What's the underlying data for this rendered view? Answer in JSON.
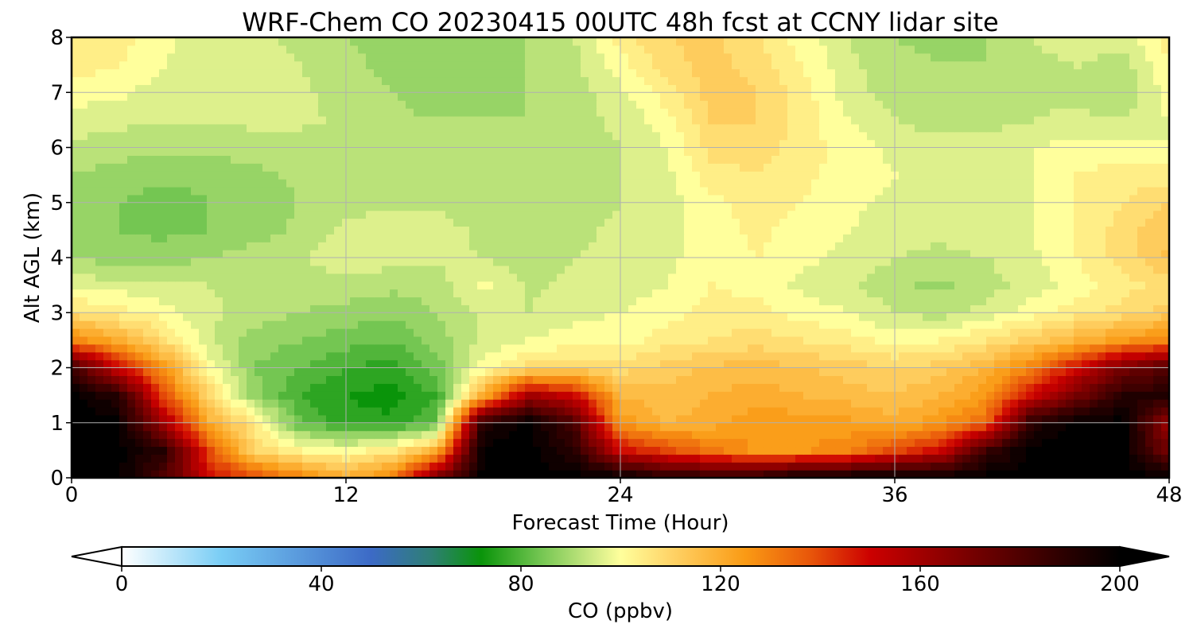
{
  "chart_data": {
    "type": "heatmap",
    "title": "WRF-Chem CO  20230415 00UTC 48h fcst at CCNY lidar site",
    "xlabel": "Forecast Time (Hour)",
    "ylabel": "Alt AGL (km)",
    "xlim": [
      0,
      48
    ],
    "ylim": [
      0,
      8
    ],
    "xticks": [
      0,
      12,
      24,
      36,
      48
    ],
    "yticks": [
      0,
      1,
      2,
      3,
      4,
      5,
      6,
      7,
      8
    ],
    "grid": true,
    "colorbar": {
      "label": "CO  (ppbv)",
      "range": [
        0,
        200
      ],
      "ticks": [
        0,
        40,
        80,
        120,
        160,
        200
      ],
      "extend": "both",
      "orientation": "horizontal",
      "placement": "bottom",
      "colorstops": [
        {
          "value": 0,
          "color": "#ffffff"
        },
        {
          "value": 20,
          "color": "#79cdf5"
        },
        {
          "value": 50,
          "color": "#3c6ac6"
        },
        {
          "value": 62,
          "color": "#2e7f74"
        },
        {
          "value": 72,
          "color": "#0a940a"
        },
        {
          "value": 84,
          "color": "#74c652"
        },
        {
          "value": 95,
          "color": "#d4ec88"
        },
        {
          "value": 100,
          "color": "#ffff9c"
        },
        {
          "value": 110,
          "color": "#ffd468"
        },
        {
          "value": 125,
          "color": "#fa9a14"
        },
        {
          "value": 138,
          "color": "#e8560a"
        },
        {
          "value": 150,
          "color": "#cc0000"
        },
        {
          "value": 165,
          "color": "#8c0000"
        },
        {
          "value": 185,
          "color": "#3a0000"
        },
        {
          "value": 200,
          "color": "#000000"
        }
      ]
    },
    "x": [
      0,
      2,
      4,
      6,
      8,
      10,
      12,
      14,
      16,
      18,
      20,
      22,
      24,
      26,
      28,
      30,
      32,
      34,
      36,
      38,
      40,
      42,
      44,
      46,
      48
    ],
    "y": [
      0,
      0.5,
      1,
      1.5,
      2,
      2.5,
      3,
      3.5,
      4,
      4.5,
      5,
      5.5,
      6,
      6.5,
      7,
      7.5,
      8
    ],
    "z": [
      [
        200,
        200,
        180,
        150,
        140,
        130,
        120,
        130,
        170,
        200,
        200,
        200,
        200,
        190,
        190,
        190,
        200,
        200,
        200,
        200,
        200,
        200,
        200,
        200,
        200
      ],
      [
        200,
        200,
        190,
        140,
        110,
        102,
        100,
        105,
        120,
        200,
        200,
        190,
        150,
        140,
        132,
        125,
        125,
        130,
        140,
        150,
        185,
        200,
        200,
        200,
        170
      ],
      [
        200,
        200,
        160,
        120,
        105,
        82,
        76,
        75,
        82,
        190,
        200,
        180,
        125,
        118,
        120,
        125,
        124,
        123,
        120,
        125,
        135,
        190,
        200,
        200,
        160
      ],
      [
        200,
        190,
        140,
        110,
        88,
        78,
        74,
        72,
        78,
        120,
        160,
        150,
        118,
        115,
        118,
        120,
        118,
        116,
        114,
        118,
        125,
        150,
        170,
        190,
        190
      ],
      [
        185,
        150,
        125,
        100,
        86,
        82,
        78,
        76,
        84,
        100,
        108,
        110,
        108,
        112,
        115,
        116,
        114,
        112,
        110,
        112,
        118,
        130,
        150,
        170,
        180
      ],
      [
        130,
        120,
        108,
        95,
        88,
        86,
        84,
        82,
        88,
        95,
        98,
        100,
        100,
        104,
        106,
        108,
        106,
        104,
        100,
        102,
        106,
        112,
        118,
        125,
        130
      ],
      [
        108,
        104,
        100,
        95,
        92,
        90,
        88,
        87,
        90,
        95,
        94,
        97,
        98,
        100,
        104,
        104,
        100,
        98,
        94,
        92,
        96,
        100,
        104,
        108,
        112
      ],
      [
        96,
        96,
        95,
        94,
        92,
        92,
        93,
        91,
        92,
        99,
        93,
        95,
        96,
        98,
        102,
        100,
        97,
        95,
        91,
        89,
        92,
        96,
        100,
        104,
        108
      ],
      [
        90,
        88,
        88,
        90,
        92,
        94,
        96,
        96,
        95,
        94,
        92,
        94,
        95,
        97,
        100,
        102,
        99,
        97,
        94,
        93,
        94,
        97,
        102,
        108,
        115
      ],
      [
        88,
        86,
        85,
        86,
        88,
        91,
        95,
        97,
        96,
        93,
        91,
        93,
        95,
        97,
        100,
        103,
        100,
        98,
        96,
        95,
        96,
        98,
        102,
        108,
        114
      ],
      [
        89,
        86,
        84,
        86,
        88,
        90,
        92,
        93,
        93,
        91,
        90,
        92,
        94,
        96,
        101,
        104,
        102,
        99,
        97,
        96,
        96,
        98,
        102,
        106,
        110
      ],
      [
        90,
        88,
        87,
        87,
        89,
        91,
        92,
        93,
        93,
        91,
        90,
        92,
        94,
        97,
        104,
        106,
        103,
        100,
        98,
        97,
        97,
        98,
        102,
        104,
        104
      ],
      [
        93,
        92,
        91,
        91,
        92,
        92,
        92,
        92,
        92,
        91,
        90,
        92,
        94,
        98,
        108,
        108,
        104,
        100,
        97,
        96,
        96,
        98,
        100,
        100,
        98
      ],
      [
        96,
        95,
        94,
        94,
        95,
        95,
        93,
        91,
        90,
        90,
        90,
        92,
        95,
        100,
        110,
        110,
        104,
        98,
        94,
        92,
        92,
        94,
        95,
        94,
        98
      ],
      [
        100,
        99,
        96,
        96,
        96,
        95,
        92,
        90,
        88,
        89,
        90,
        92,
        97,
        104,
        112,
        110,
        104,
        96,
        92,
        91,
        91,
        93,
        93,
        90,
        100
      ],
      [
        104,
        102,
        98,
        96,
        96,
        94,
        91,
        89,
        87,
        88,
        90,
        93,
        100,
        108,
        112,
        108,
        102,
        95,
        91,
        90,
        90,
        93,
        94,
        92,
        102
      ],
      [
        106,
        104,
        99,
        96,
        95,
        93,
        90,
        88,
        86,
        88,
        90,
        94,
        104,
        110,
        111,
        106,
        100,
        94,
        90,
        89,
        90,
        94,
        96,
        96,
        104
      ]
    ]
  }
}
